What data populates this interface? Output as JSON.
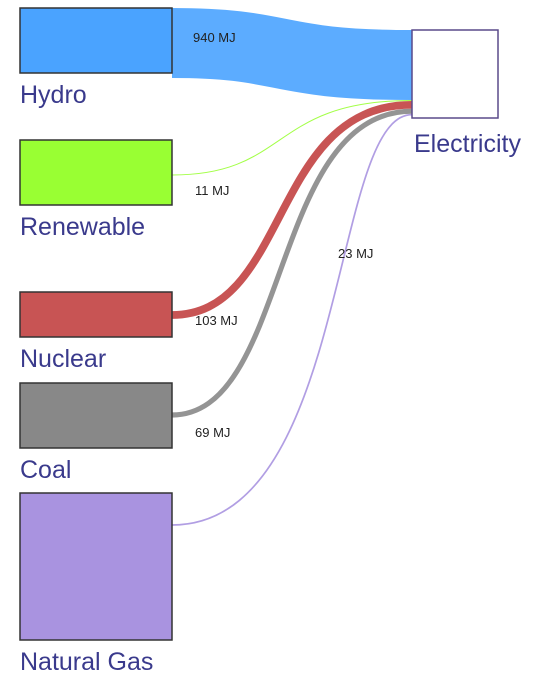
{
  "chart_data": {
    "type": "sankey",
    "categories": [
      "Hydro",
      "Renewable",
      "Nuclear",
      "Coal",
      "Natural Gas"
    ],
    "target": "Electricity",
    "values": [
      940,
      11,
      103,
      69,
      23
    ],
    "value_labels": [
      "940 MJ",
      "11 MJ",
      "103 MJ",
      "69 MJ",
      "23 MJ"
    ],
    "colors": [
      "#4aa3ff",
      "#99ff33",
      "#c85454",
      "#888888",
      "#a993e0"
    ]
  }
}
